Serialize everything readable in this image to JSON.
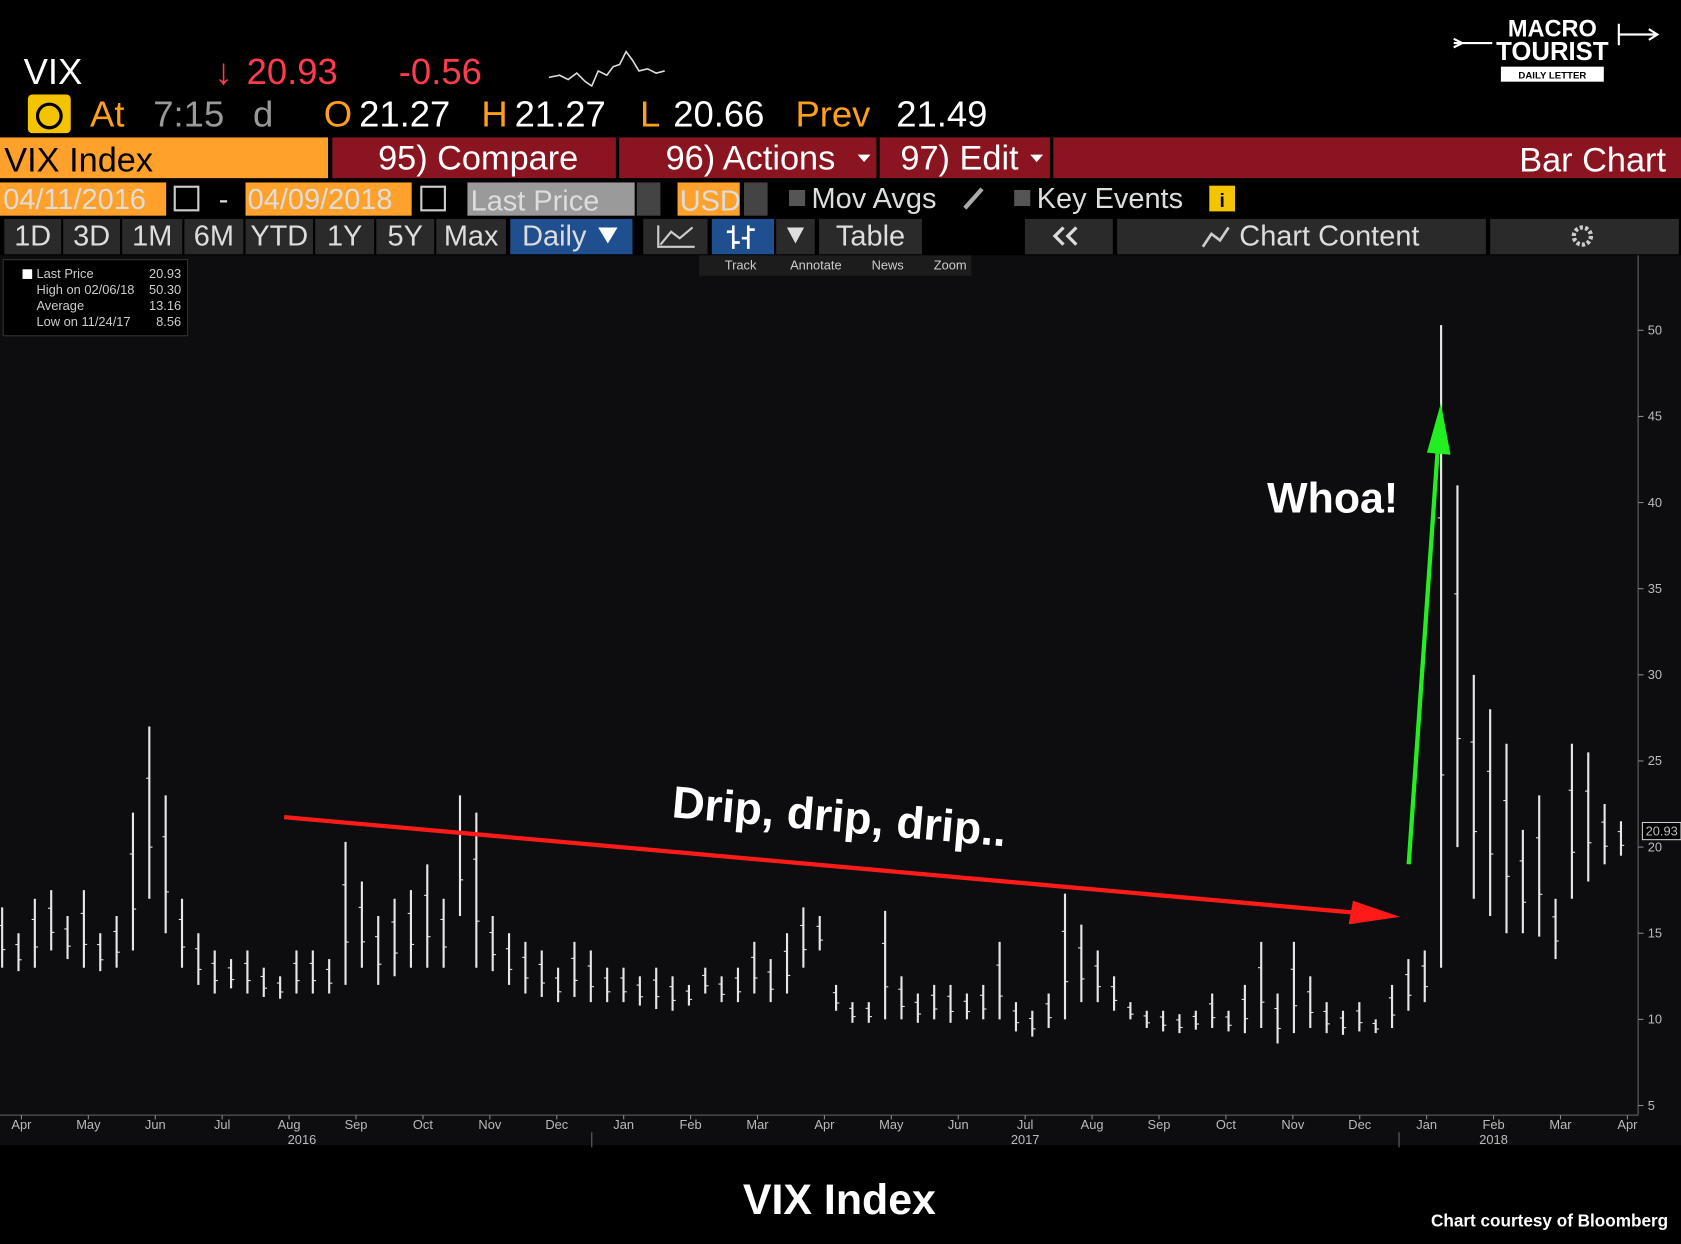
{
  "header": {
    "ticker": "VIX",
    "arrow": "↓",
    "last": "20.93",
    "change": "-0.56",
    "at": "At",
    "time": "7:15",
    "d": "d",
    "o": "O",
    "open": "21.27",
    "h": "H",
    "high": "21.27",
    "l": "L",
    "low": "20.66",
    "prev": "Prev",
    "prev_value": "21.49"
  },
  "logo": {
    "line1": "MACRO",
    "line2": "TOURIST",
    "line3": "DAILY LETTER"
  },
  "toolbar": {
    "security": "VIX Index",
    "compare": "95) Compare",
    "actions": "96) Actions",
    "edit": "97) Edit",
    "chart_kind": "Bar Chart",
    "start": "04/11/2016",
    "dash": "-",
    "end": "04/09/2018",
    "field": "Last Price",
    "currency": "USD",
    "mov_avgs": "Mov Avgs",
    "key_events": "Key Events",
    "periods": [
      "1D",
      "3D",
      "1M",
      "6M",
      "YTD",
      "1Y",
      "5Y",
      "Max"
    ],
    "frequency": "Daily",
    "table": "Table",
    "chart_content": "Chart Content",
    "tools": [
      "Track",
      "Annotate",
      "News",
      "Zoom"
    ]
  },
  "chart_data": {
    "type": "range_bar",
    "color": "#e6e6e6",
    "legend": [
      {
        "label": "Last Price",
        "value": "20.93"
      },
      {
        "label": "High on 02/06/18",
        "value": "50.30"
      },
      {
        "label": "Average",
        "value": "13.16"
      },
      {
        "label": "Low on 11/24/17",
        "value": "8.56"
      }
    ],
    "high": [
      16.5,
      15,
      17,
      17.5,
      16,
      17.5,
      15,
      16,
      22,
      27,
      23,
      17,
      15,
      14,
      13.5,
      14,
      13,
      12.5,
      14,
      14,
      13.5,
      20.3,
      18,
      16,
      17,
      17.5,
      19,
      17,
      23,
      22,
      16,
      15,
      14.5,
      14,
      13,
      14.5,
      14,
      13,
      13,
      12.5,
      13,
      12.5,
      12,
      13,
      12.5,
      13,
      14.5,
      13.5,
      15,
      16.5,
      16,
      12,
      11,
      11,
      16.3,
      12.5,
      11.5,
      12,
      12,
      11.5,
      12,
      14.5,
      11,
      10.5,
      11.5,
      17.3,
      15.5,
      14,
      12.5,
      11,
      10.5,
      10.5,
      10.3,
      10.5,
      11.5,
      10.5,
      12,
      14.5,
      11.5,
      14.5,
      12.5,
      11,
      10.5,
      11,
      10,
      12,
      13.5,
      14,
      50.3,
      41,
      30,
      28,
      26,
      21,
      23,
      17,
      26,
      25.5,
      22.5,
      21.5
    ],
    "low": [
      13,
      12.8,
      13,
      14,
      13.5,
      13,
      12.8,
      13,
      14,
      17,
      15,
      13,
      12,
      11.5,
      11.8,
      11.5,
      11.3,
      11.2,
      11.5,
      11.5,
      11.5,
      12,
      13,
      12,
      12.5,
      13,
      13,
      13,
      16,
      13,
      12.8,
      12,
      11.5,
      11.3,
      11,
      11.3,
      11,
      11,
      11,
      10.8,
      10.6,
      10.5,
      10.8,
      11.5,
      11,
      11,
      11.5,
      11,
      11.5,
      13,
      14,
      10.5,
      9.8,
      9.8,
      10,
      10,
      9.8,
      10,
      9.8,
      10,
      10,
      10,
      9.3,
      9,
      9.5,
      10,
      11,
      11,
      10.5,
      10,
      9.5,
      9.3,
      9.2,
      9.4,
      9.5,
      9.3,
      9.2,
      9.5,
      8.6,
      9.2,
      9.5,
      9.2,
      9.1,
      9.3,
      9.2,
      9.5,
      10.5,
      11,
      13,
      20,
      17,
      16,
      15,
      15,
      14.8,
      13.5,
      17,
      18,
      19,
      19.5
    ],
    "categories": [
      "Apr",
      "May",
      "Jun",
      "Jul",
      "Aug",
      "Sep",
      "Oct",
      "Nov",
      "Dec",
      "Jan",
      "Feb",
      "Mar",
      "Apr",
      "May",
      "Jun",
      "Jul",
      "Aug",
      "Sep",
      "Oct",
      "Nov",
      "Dec",
      "Jan",
      "Feb",
      "Mar",
      "Apr"
    ],
    "years": [
      "2016",
      "2017",
      "2018"
    ],
    "ylim": [
      4.44,
      54.35
    ],
    "yticks": [
      5,
      10,
      15,
      20,
      25,
      30,
      35,
      40,
      45,
      50
    ],
    "annotations": {
      "drip": "Drip, drip, drip..",
      "whoa": "Whoa!"
    },
    "title": "VIX Index",
    "credit": "Chart courtesy of Bloomberg"
  }
}
